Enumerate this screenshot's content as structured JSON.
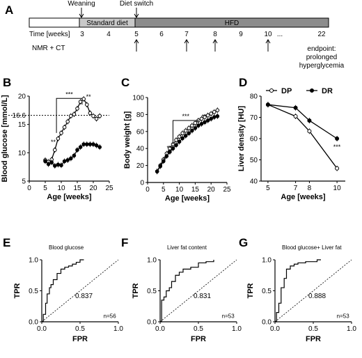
{
  "colors": {
    "ink": "#000000",
    "diet_bar": "#c8c8c8",
    "hfd_bar": "#8c8c8c",
    "bg": "#ffffff"
  },
  "panels": {
    "A": {
      "label": "A",
      "weaning": "Weaning",
      "diet_switch": "Diet switch",
      "standard_diet": "Standard diet",
      "hfd": "HFD",
      "time_label": "Time [weeks]",
      "weeks": [
        "3",
        "4",
        "5",
        "6",
        "7",
        "8",
        "9",
        "10",
        "...",
        "22"
      ],
      "nmr_ct": "NMR + CT",
      "endpoint": [
        "endpoint:",
        "prolonged",
        "hyperglycemia"
      ]
    },
    "B": {
      "label": "B"
    },
    "C": {
      "label": "C"
    },
    "D": {
      "label": "D"
    },
    "E": {
      "label": "E"
    },
    "F": {
      "label": "F"
    },
    "G": {
      "label": "G"
    }
  },
  "chart_data": [
    {
      "panel": "B",
      "type": "line",
      "xlabel": "Age [weeks]",
      "ylabel": "Blood glucose [mmol/L]",
      "xlim": [
        0,
        25
      ],
      "ylim": [
        5,
        20
      ],
      "xticks": [
        0,
        5,
        10,
        15,
        20,
        25
      ],
      "yticks": [
        5,
        10,
        15,
        20
      ],
      "threshold": 16.6,
      "threshold_label": "16.6",
      "annotations": [
        "**",
        "***",
        "**"
      ],
      "series": [
        {
          "marker": "open",
          "x": [
            5,
            6,
            7,
            8,
            9,
            10,
            11,
            12,
            13,
            14,
            15,
            16,
            17,
            18,
            19,
            20,
            21,
            22
          ],
          "y": [
            8.7,
            8.4,
            8.8,
            10.5,
            12.5,
            13.5,
            14.5,
            15.5,
            16.5,
            16.8,
            17.8,
            19.0,
            19.5,
            18.5,
            17.0,
            16.5,
            16.0,
            16.5
          ]
        },
        {
          "marker": "filled",
          "x": [
            5,
            6,
            7,
            8,
            9,
            10,
            11,
            12,
            13,
            14,
            15,
            16,
            17,
            18,
            19,
            20,
            21,
            22
          ],
          "y": [
            8.5,
            8.0,
            8.3,
            7.7,
            7.9,
            7.8,
            8.5,
            8.7,
            9.0,
            9.5,
            10.5,
            11.0,
            11.5,
            11.5,
            11.5,
            11.5,
            11.3,
            11.0
          ]
        }
      ]
    },
    {
      "panel": "C",
      "type": "line",
      "xlabel": "Age [weeks]",
      "ylabel": "Body weight [g]",
      "xlim": [
        0,
        25
      ],
      "ylim": [
        0,
        100
      ],
      "xticks": [
        0,
        5,
        10,
        15,
        20,
        25
      ],
      "yticks": [
        0,
        20,
        40,
        60,
        80,
        100
      ],
      "annotations": [
        "**",
        "***",
        "**"
      ],
      "series": [
        {
          "marker": "open",
          "x": [
            3,
            4,
            5,
            6,
            7,
            8,
            9,
            10,
            11,
            12,
            13,
            14,
            15,
            16,
            17,
            18,
            19,
            20,
            21,
            22
          ],
          "y": [
            13,
            20,
            27,
            34,
            40,
            45,
            50,
            54,
            58,
            61,
            64,
            67,
            70,
            73,
            75,
            77,
            79,
            81,
            83,
            85
          ]
        },
        {
          "marker": "filled",
          "x": [
            3,
            4,
            5,
            6,
            7,
            8,
            9,
            10,
            11,
            12,
            13,
            14,
            15,
            16,
            17,
            18,
            19,
            20,
            21,
            22
          ],
          "y": [
            13,
            19,
            25,
            31,
            36,
            40,
            44,
            48,
            52,
            55,
            58,
            61,
            64,
            67,
            69,
            71,
            73,
            75,
            77,
            78
          ]
        }
      ]
    },
    {
      "panel": "D",
      "type": "line",
      "xlabel": "Age [weeks]",
      "ylabel": "Liver density [HU]",
      "ylim": [
        40,
        80
      ],
      "xticks": [
        5,
        7,
        8,
        10
      ],
      "yticks": [
        40,
        50,
        60,
        70,
        80
      ],
      "legend": [
        "DP",
        "DR"
      ],
      "legend_position": "top",
      "annotations": [
        "***"
      ],
      "series": [
        {
          "name": "DP",
          "marker": "open",
          "x": [
            5,
            7,
            8,
            10
          ],
          "y": [
            76,
            70.5,
            63.5,
            46
          ]
        },
        {
          "name": "DR",
          "marker": "filled",
          "x": [
            5,
            7,
            8,
            10
          ],
          "y": [
            76,
            74.5,
            68.5,
            60
          ]
        }
      ]
    },
    {
      "panel": "E",
      "type": "line",
      "title": "Blood glucose",
      "xlabel": "FPR",
      "ylabel": "TPR",
      "xlim": [
        0,
        1
      ],
      "ylim": [
        0,
        1
      ],
      "xticks": [
        "0.0",
        "0.5",
        "1.0"
      ],
      "yticks": [
        "0.0",
        "0.5",
        "1.0"
      ],
      "auc": "0.837",
      "n": "n=56",
      "x": [
        0,
        0.02,
        0.02,
        0.05,
        0.05,
        0.07,
        0.07,
        0.1,
        0.1,
        0.12,
        0.12,
        0.15,
        0.15,
        0.2,
        0.2,
        0.25,
        0.25,
        0.3,
        0.3,
        0.35,
        0.35,
        0.4,
        0.4,
        0.45,
        0.45,
        0.5,
        0.5,
        0.55
      ],
      "y": [
        0,
        0,
        0.12,
        0.12,
        0.3,
        0.3,
        0.45,
        0.45,
        0.55,
        0.55,
        0.6,
        0.6,
        0.68,
        0.68,
        0.78,
        0.78,
        0.85,
        0.85,
        0.88,
        0.88,
        0.9,
        0.9,
        0.93,
        0.93,
        0.96,
        0.96,
        1.0,
        1.0
      ]
    },
    {
      "panel": "F",
      "type": "line",
      "title": "Liver fat content",
      "xlabel": "FPR",
      "ylabel": "TPR",
      "xlim": [
        0,
        1
      ],
      "ylim": [
        0,
        1
      ],
      "xticks": [
        "0.0",
        "0.5",
        "1.0"
      ],
      "yticks": [
        "0.0",
        "0.5",
        "1.0"
      ],
      "auc": "0.831",
      "n": "n=53",
      "x": [
        0,
        0.02,
        0.02,
        0.05,
        0.05,
        0.08,
        0.08,
        0.12,
        0.12,
        0.15,
        0.15,
        0.2,
        0.2,
        0.25,
        0.25,
        0.3,
        0.3,
        0.4,
        0.4,
        0.5,
        0.5,
        0.6,
        0.6,
        0.7,
        0.7
      ],
      "y": [
        0,
        0,
        0.35,
        0.35,
        0.4,
        0.4,
        0.5,
        0.5,
        0.55,
        0.55,
        0.65,
        0.65,
        0.75,
        0.75,
        0.8,
        0.8,
        0.85,
        0.85,
        0.88,
        0.88,
        0.95,
        0.95,
        0.97,
        0.97,
        1.0
      ]
    },
    {
      "panel": "G",
      "type": "line",
      "title": "Blood glucose+ Liver fat",
      "xlabel": "FPR",
      "ylabel": "TPR",
      "xlim": [
        0,
        1
      ],
      "ylim": [
        0,
        1
      ],
      "xticks": [
        "0.0",
        "0.5",
        "1.0"
      ],
      "yticks": [
        "0.0",
        "0.5",
        "1.0"
      ],
      "auc": "0.888",
      "n": "n=53",
      "x": [
        0,
        0.02,
        0.02,
        0.05,
        0.05,
        0.08,
        0.08,
        0.12,
        0.12,
        0.15,
        0.15,
        0.2,
        0.2,
        0.25,
        0.25,
        0.3,
        0.3,
        0.4,
        0.4,
        0.55,
        0.55,
        0.6
      ],
      "y": [
        0,
        0,
        0.15,
        0.15,
        0.3,
        0.3,
        0.55,
        0.55,
        0.7,
        0.7,
        0.85,
        0.85,
        0.9,
        0.9,
        0.93,
        0.93,
        0.95,
        0.95,
        0.97,
        0.97,
        1.0,
        1.0
      ]
    }
  ]
}
